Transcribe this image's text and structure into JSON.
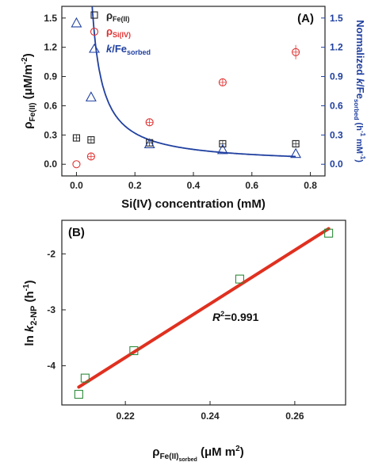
{
  "chart_data": [
    {
      "type": "scatter",
      "panel_label": "(A)",
      "xlabel": "Si(IV) concentration (mM)",
      "ylabel": {
        "main": "ρ",
        "sub": "Fe(II)",
        "rest": " (μM/m",
        "sup": "-2",
        "end": ")"
      },
      "y2label": {
        "pre": "Normalized ",
        "k": "k",
        "mid": "/Fe",
        "sub": "sorbed",
        "open": " (h",
        "sup1": "-1",
        "mm": " mM",
        "sup2": "-1",
        "close": ")"
      },
      "xlim": [
        -0.05,
        0.85
      ],
      "ylim": [
        -0.12,
        1.62
      ],
      "y2lim": [
        -0.12,
        1.62
      ],
      "x_ticks": [
        0.0,
        0.2,
        0.4,
        0.6,
        0.8
      ],
      "x_tick_labels": [
        "0.0",
        "0.2",
        "0.4",
        "0.6",
        "0.8"
      ],
      "y_ticks": [
        0.0,
        0.3,
        0.6,
        0.9,
        1.2,
        1.5
      ],
      "y_tick_labels": [
        "0.0",
        "0.3",
        "0.6",
        "0.9",
        "1.2",
        "1.5"
      ],
      "y2_tick_labels": [
        "0.0",
        "0.3",
        "0.6",
        "0.9",
        "1.2",
        "1.5"
      ],
      "legend_placement": "top-left",
      "series": [
        {
          "legend": {
            "main": "ρ",
            "sub": "Fe(II)"
          },
          "marker": "square",
          "color": "#222222",
          "x": [
            0.0,
            0.05,
            0.25,
            0.5,
            0.75
          ],
          "y": [
            0.27,
            0.25,
            0.22,
            0.21,
            0.21
          ]
        },
        {
          "legend": {
            "main": "ρ",
            "sub": "Si(IV)"
          },
          "marker": "circle",
          "color": "#e03030",
          "x": [
            0.0,
            0.05,
            0.25,
            0.5,
            0.75
          ],
          "y": [
            0.0,
            0.08,
            0.43,
            0.84,
            1.15
          ]
        },
        {
          "legend": {
            "main": "k",
            "mid": "/Fe",
            "sub": "sorbed"
          },
          "marker": "triangle",
          "color": "#2040a0",
          "x": [
            0.0,
            0.05,
            0.25,
            0.5,
            0.75
          ],
          "y": [
            1.45,
            0.69,
            0.21,
            0.15,
            0.11
          ]
        }
      ],
      "fit_curve": {
        "color": "#2040a0",
        "form": "y = 0.058 / (x - 0.018)"
      }
    },
    {
      "type": "scatter",
      "panel_label": "(B)",
      "xlabel": {
        "main": "ρ",
        "sub": "Fe(II)",
        "subsub": "sorbed",
        "rest": " (μM m",
        "sup": "2",
        "end": ")"
      },
      "ylabel": {
        "pre": "ln ",
        "k": "k",
        "sub": "2-NP",
        "rest": " (h",
        "sup": "-1",
        "end": ")"
      },
      "xlim": [
        0.205,
        0.272
      ],
      "ylim": [
        -4.7,
        -1.4
      ],
      "x_ticks": [
        0.22,
        0.24,
        0.26
      ],
      "x_tick_labels": [
        "0.22",
        "0.24",
        "0.26"
      ],
      "y_ticks": [
        -4,
        -3,
        -2
      ],
      "y_tick_labels": [
        "-4",
        "-3",
        "-2"
      ],
      "series": [
        {
          "marker": "square",
          "color": "#2e8b3a",
          "x": [
            0.209,
            0.2105,
            0.222,
            0.247,
            0.268
          ],
          "y": [
            -4.51,
            -4.22,
            -3.73,
            -2.45,
            -1.63
          ]
        }
      ],
      "fit_line": {
        "color": "#e03020",
        "x": [
          0.209,
          0.268
        ],
        "y": [
          -4.38,
          -1.55
        ]
      },
      "annotation": {
        "r": "R",
        "sup": "2",
        "value": "=0.991"
      }
    }
  ]
}
